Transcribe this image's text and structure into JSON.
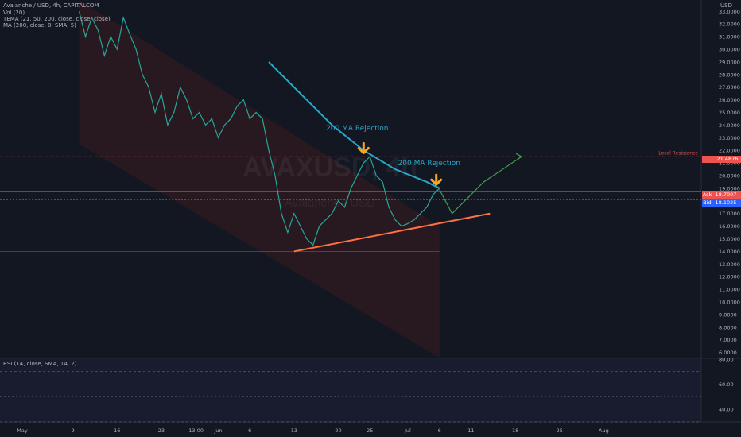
{
  "header": {
    "title": "Avalanche / USD, 4h, CAPITALCOM",
    "indicators": [
      "Vol (20)",
      "TEMA (21, 50, 200, close, close, close)",
      "MA (200, close, 0, SMA, 5)"
    ]
  },
  "currency": "USD",
  "watermark": {
    "symbol": "AVAXUSD, 4h",
    "name": "Avalanche / USD"
  },
  "quotes": {
    "ask_label": "Ask",
    "ask_value": "18.7007",
    "bid_label": "Bid",
    "bid_value": "18.1025",
    "resistance_label": "Local Resistance",
    "resistance_value": "21.4876"
  },
  "annotations": {
    "rejection_1": "200 MA Rejection",
    "rejection_2": "200 MA Rejection"
  },
  "rsi_label": "RSI (14, close, SMA, 14, 2)",
  "colors": {
    "background": "#131722",
    "up": "#26a69a",
    "down": "#ef5350",
    "ma200": "#2aa6c8",
    "trendline": "#ff7043",
    "projection": "#3fa04a",
    "arrow": "#f5a623",
    "resistance": "#e05050",
    "rsi": "#ffffff",
    "channel": "#3a1c1f"
  },
  "chart_data": [
    {
      "type": "line",
      "title": "Avalanche / USD, 4h, CAPITALCOM",
      "price_axis_labels": [
        "33.0000",
        "32.0000",
        "31.0000",
        "30.0000",
        "29.0000",
        "28.0000",
        "27.0000",
        "26.0000",
        "25.0000",
        "24.0000",
        "23.0000",
        "22.0000",
        "21.0000",
        "20.0000",
        "19.0000",
        "17.0000",
        "16.0000",
        "15.0000",
        "14.0000",
        "13.0000",
        "12.0000",
        "11.0000",
        "10.0000",
        "9.0000",
        "8.0000",
        "7.0000",
        "6.0000"
      ],
      "x_tick_labels": [
        "May",
        "9",
        "16",
        "23",
        "13:00",
        "Jun",
        "6",
        "13",
        "20",
        "25",
        "Jul",
        "6",
        "11",
        "18",
        "25",
        "Aug"
      ],
      "x_tick_days": [
        1,
        9,
        16,
        23,
        28.5,
        32,
        37,
        44,
        51,
        56,
        62,
        67,
        72,
        79,
        86,
        93
      ],
      "ylim": [
        5.6,
        33.9
      ],
      "price": {
        "days": [
          10,
          11,
          12,
          13,
          14,
          15,
          16,
          17,
          18,
          19,
          20,
          21,
          22,
          23,
          24,
          25,
          26,
          27,
          28,
          29,
          30,
          31,
          32,
          33,
          34,
          35,
          36,
          37,
          38,
          39,
          40,
          41,
          42,
          43,
          44,
          45,
          46,
          47,
          48,
          49,
          50,
          51,
          52,
          53,
          54,
          55,
          56,
          57,
          58,
          59,
          60,
          61,
          62,
          63,
          64,
          65,
          66,
          67
        ],
        "close": [
          33.0,
          31.0,
          32.5,
          31.5,
          29.5,
          31.0,
          30.0,
          32.5,
          31.2,
          30.0,
          28.0,
          27.0,
          25.0,
          26.5,
          24.0,
          25.0,
          27.0,
          26.0,
          24.5,
          25.0,
          24.0,
          24.5,
          23.0,
          24.0,
          24.5,
          25.5,
          26.0,
          24.5,
          25.0,
          24.5,
          22.0,
          20.0,
          17.0,
          15.5,
          17.0,
          16.0,
          15.0,
          14.5,
          16.0,
          16.5,
          17.0,
          18.0,
          17.5,
          19.0,
          20.0,
          21.0,
          21.5,
          20.0,
          19.5,
          17.5,
          16.5,
          16.0,
          16.2,
          16.5,
          17.0,
          17.5,
          18.5,
          19.0
        ]
      },
      "ma200": {
        "days": [
          40,
          45,
          50,
          55,
          60,
          65,
          67
        ],
        "values": [
          29.0,
          26.5,
          24.0,
          22.0,
          20.5,
          19.5,
          19.0
        ]
      },
      "trendline": {
        "from": [
          44,
          14.0
        ],
        "to": [
          75,
          17.0
        ]
      },
      "projection": {
        "days": [
          67,
          69,
          74,
          80
        ],
        "values": [
          18.9,
          17.0,
          19.5,
          21.5
        ]
      },
      "resistance": 21.4876
    },
    {
      "type": "line",
      "title": "RSI (14, close, SMA, 14, 2)",
      "ylim": [
        30,
        80
      ],
      "y_tick_labels": [
        "80.00",
        "60.00",
        "40.00"
      ],
      "y_tick_values": [
        80,
        60,
        40
      ]
    }
  ]
}
